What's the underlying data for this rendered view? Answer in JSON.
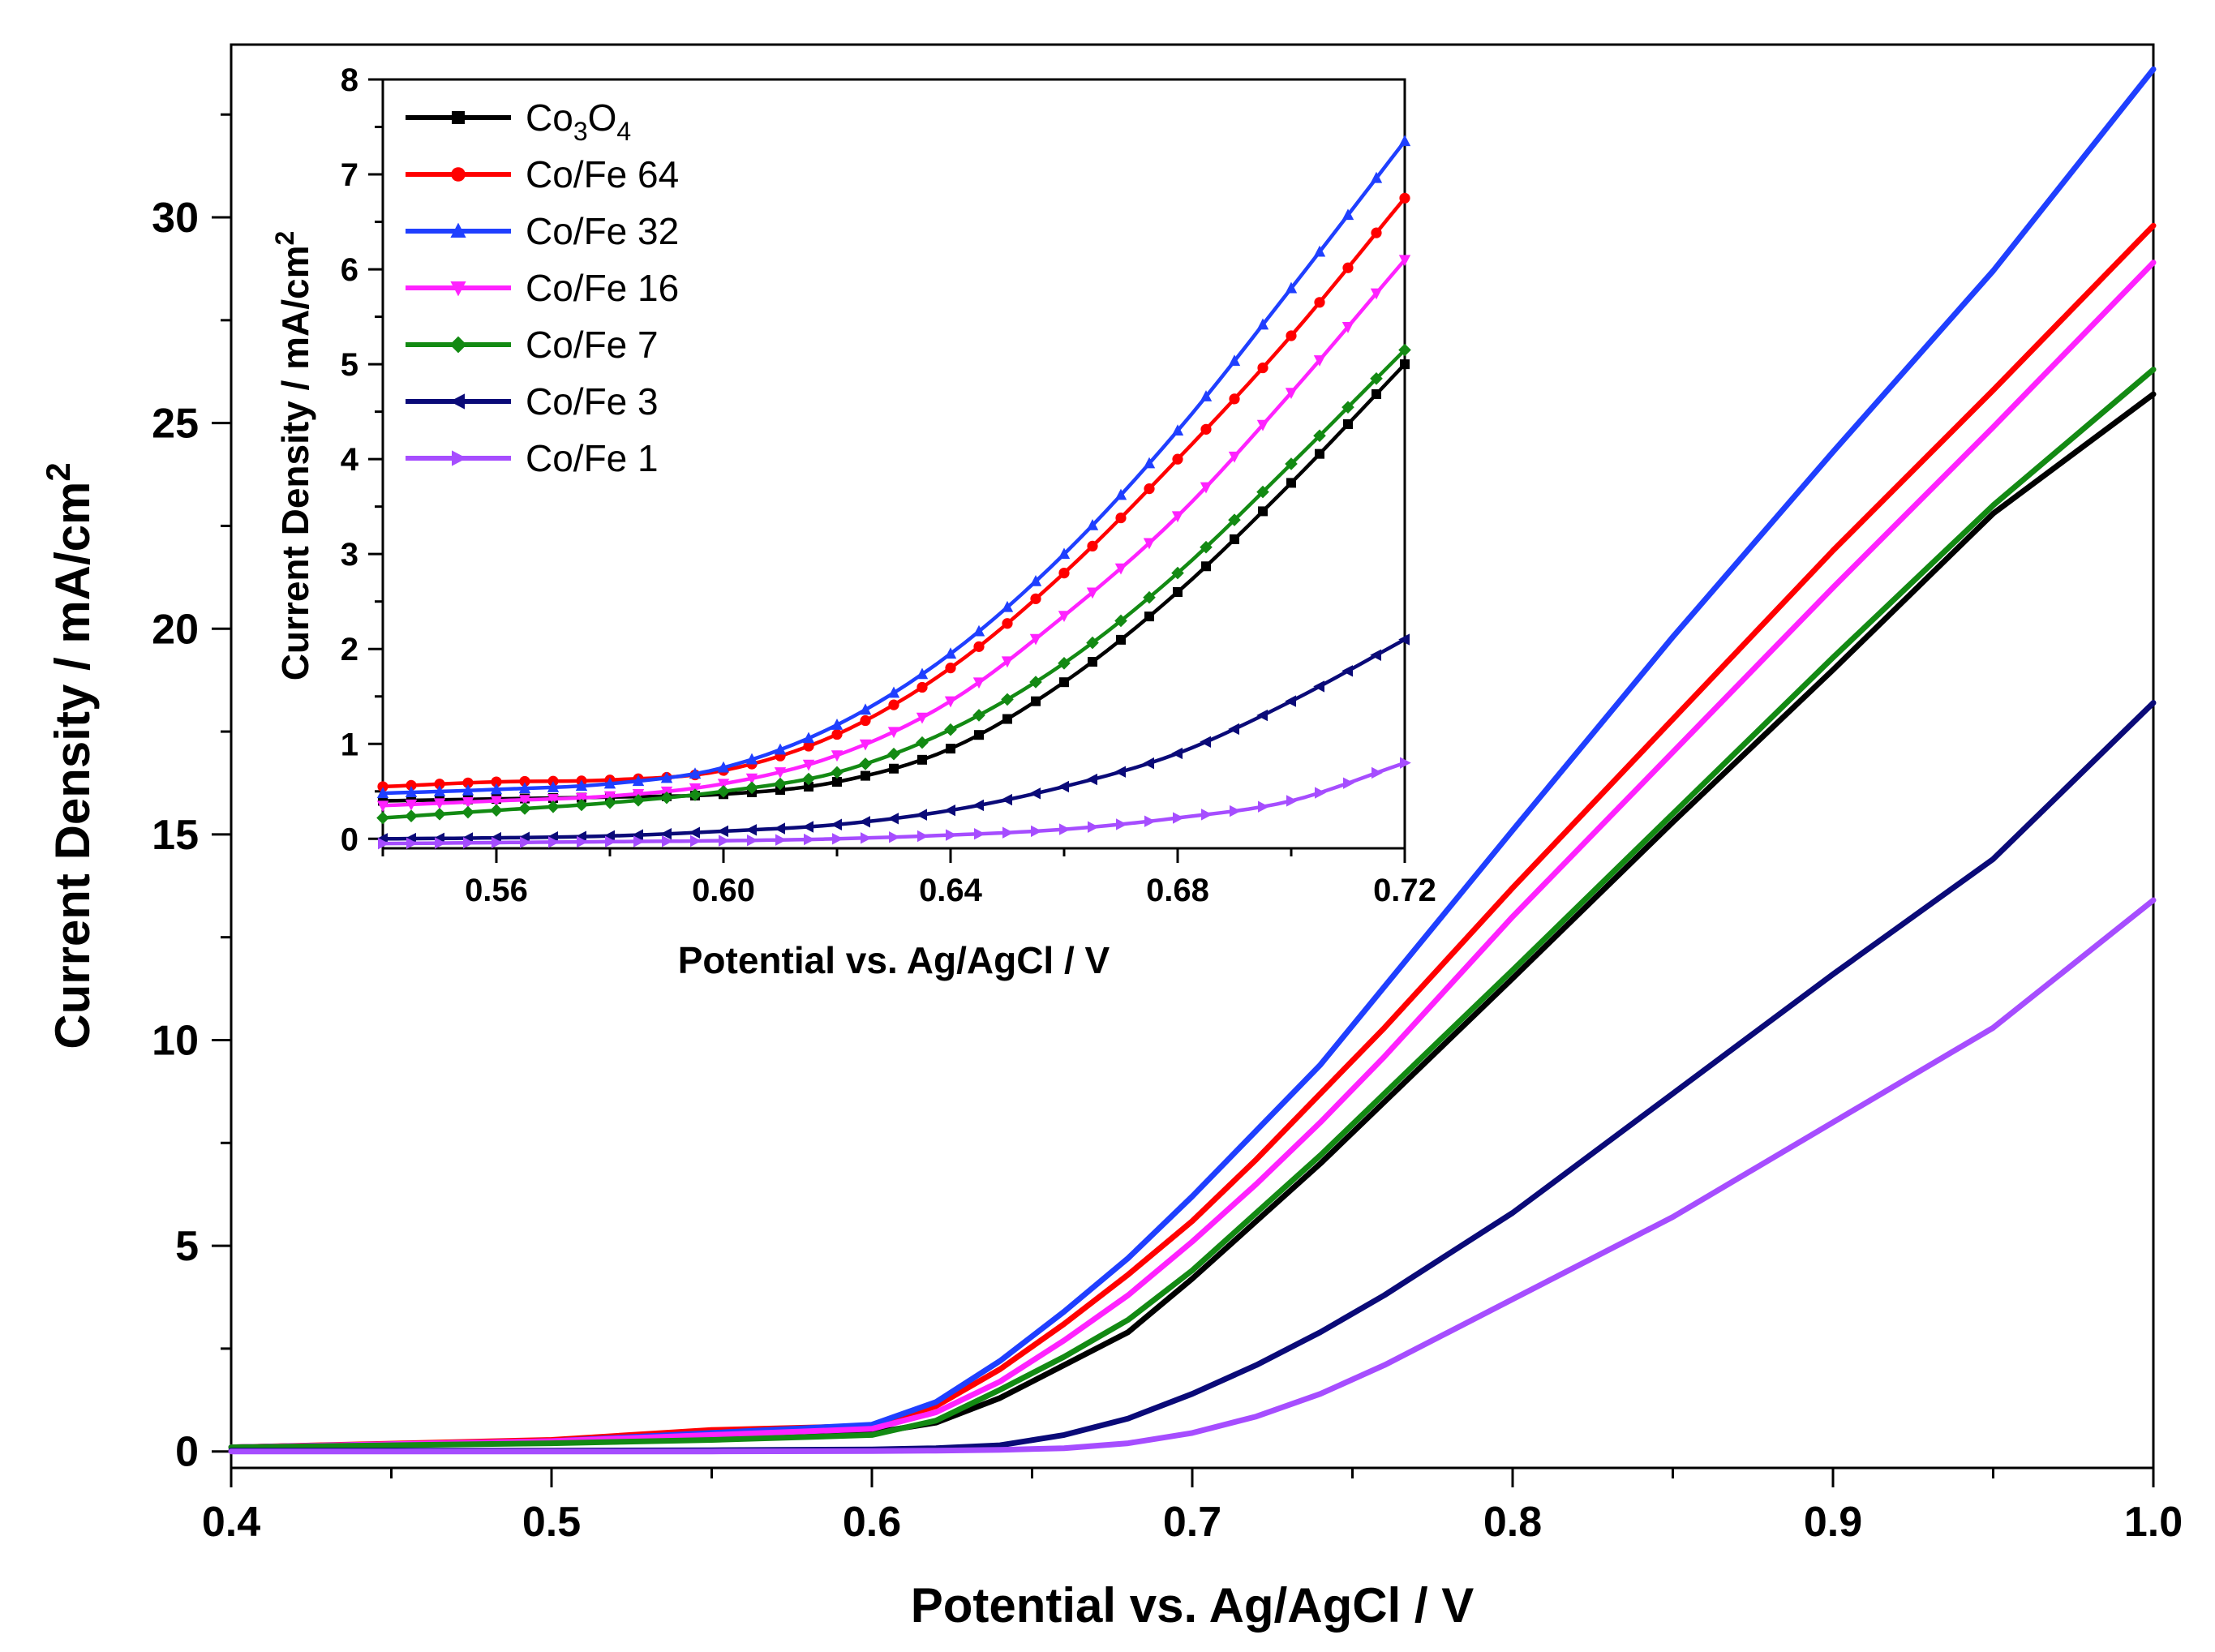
{
  "chart_data": [
    {
      "type": "line",
      "title": "",
      "xlabel": "Potential vs. Ag/AgCl / V",
      "ylabel": "Current Density / mA/cm",
      "ylabel_sup": "2",
      "xlim": [
        0.4,
        1.0
      ],
      "ylim": [
        -0.4,
        34.2
      ],
      "xticks": [
        "0.4",
        "0.5",
        "0.6",
        "0.7",
        "0.8",
        "0.9",
        "1.0"
      ],
      "yticks": [
        "0",
        "5",
        "10",
        "15",
        "20",
        "25",
        "30"
      ],
      "grid": false,
      "legend": "none",
      "x": [
        0.4,
        0.5,
        0.55,
        0.6,
        0.62,
        0.64,
        0.66,
        0.68,
        0.7,
        0.72,
        0.74,
        0.76,
        0.78,
        0.8,
        0.85,
        0.9,
        0.95,
        1.0
      ],
      "series": [
        {
          "name": "Co3O4",
          "color": "#000000",
          "values": [
            0.1,
            0.25,
            0.35,
            0.45,
            0.7,
            1.3,
            2.1,
            2.9,
            4.2,
            5.6,
            7.0,
            8.5,
            10.0,
            11.5,
            15.3,
            19.0,
            22.8,
            25.7
          ]
        },
        {
          "name": "Co/Fe 64",
          "color": "#ff0000",
          "values": [
            0.1,
            0.28,
            0.52,
            0.62,
            1.1,
            2.0,
            3.1,
            4.3,
            5.6,
            7.1,
            8.7,
            10.3,
            12.0,
            13.7,
            17.8,
            21.9,
            25.8,
            29.8
          ]
        },
        {
          "name": "Co/Fe 32",
          "color": "#1f3fff",
          "values": [
            0.1,
            0.25,
            0.45,
            0.65,
            1.2,
            2.2,
            3.4,
            4.7,
            6.2,
            7.8,
            9.4,
            11.3,
            13.2,
            15.1,
            19.8,
            24.3,
            28.7,
            33.6
          ]
        },
        {
          "name": "Co/Fe 16",
          "color": "#ff22ff",
          "values": [
            0.1,
            0.25,
            0.4,
            0.55,
            0.95,
            1.7,
            2.7,
            3.8,
            5.1,
            6.5,
            8.0,
            9.6,
            11.3,
            13.0,
            17.0,
            21.0,
            24.9,
            28.9
          ]
        },
        {
          "name": "Co/Fe 7",
          "color": "#138a13",
          "values": [
            0.1,
            0.2,
            0.28,
            0.4,
            0.75,
            1.5,
            2.3,
            3.2,
            4.4,
            5.8,
            7.2,
            8.7,
            10.2,
            11.7,
            15.5,
            19.3,
            23.0,
            26.3
          ]
        },
        {
          "name": "Co/Fe 3",
          "color": "#0a0a78",
          "values": [
            0.02,
            0.02,
            0.03,
            0.05,
            0.08,
            0.15,
            0.4,
            0.8,
            1.4,
            2.1,
            2.9,
            3.8,
            4.8,
            5.8,
            8.7,
            11.6,
            14.4,
            18.2
          ]
        },
        {
          "name": "Co/Fe 1",
          "color": "#a64dff",
          "values": [
            0.0,
            0.0,
            0.0,
            0.01,
            0.02,
            0.04,
            0.08,
            0.2,
            0.45,
            0.85,
            1.4,
            2.1,
            2.9,
            3.7,
            5.7,
            8.0,
            10.3,
            13.4
          ]
        }
      ]
    },
    {
      "type": "line",
      "title": "",
      "xlabel": "Potential vs. Ag/AgCl / V",
      "ylabel": "Current Density / mA/cm",
      "ylabel_sup": "2",
      "xlim": [
        0.54,
        0.72
      ],
      "ylim": [
        -0.1,
        8.0
      ],
      "xticks": [
        "0.56",
        "0.60",
        "0.64",
        "0.68",
        "0.72"
      ],
      "yticks": [
        "0",
        "1",
        "2",
        "3",
        "4",
        "5",
        "6",
        "7",
        "8"
      ],
      "grid": false,
      "legend": "top-left",
      "x": [
        0.54,
        0.56,
        0.58,
        0.6,
        0.62,
        0.64,
        0.66,
        0.68,
        0.7,
        0.72
      ],
      "series": [
        {
          "name": "Co3O4",
          "label_main": "Co",
          "label_sub1": "3",
          "label_mid": "O",
          "label_sub2": "4",
          "color": "#000000",
          "marker": "square",
          "values": [
            0.4,
            0.42,
            0.44,
            0.47,
            0.6,
            0.95,
            1.65,
            2.6,
            3.75,
            5.0
          ]
        },
        {
          "name": "Co/Fe 64",
          "label_main": "Co/Fe 64",
          "color": "#ff0000",
          "marker": "circle",
          "values": [
            0.55,
            0.6,
            0.62,
            0.72,
            1.1,
            1.8,
            2.8,
            4.0,
            5.3,
            6.75
          ]
        },
        {
          "name": "Co/Fe 32",
          "label_main": "Co/Fe 32",
          "color": "#1f3fff",
          "marker": "triangle-up",
          "values": [
            0.48,
            0.52,
            0.58,
            0.75,
            1.2,
            1.95,
            3.0,
            4.3,
            5.8,
            7.35
          ]
        },
        {
          "name": "Co/Fe 16",
          "label_main": "Co/Fe 16",
          "color": "#ff22ff",
          "marker": "triangle-down",
          "values": [
            0.35,
            0.4,
            0.45,
            0.58,
            0.88,
            1.45,
            2.35,
            3.4,
            4.7,
            6.1
          ]
        },
        {
          "name": "Co/Fe 7",
          "label_main": "Co/Fe 7",
          "color": "#138a13",
          "marker": "diamond",
          "values": [
            0.22,
            0.3,
            0.38,
            0.5,
            0.7,
            1.15,
            1.85,
            2.8,
            3.95,
            5.15
          ]
        },
        {
          "name": "Co/Fe 3",
          "label_main": "Co/Fe 3",
          "color": "#0a0a78",
          "marker": "triangle-left",
          "values": [
            0.0,
            0.01,
            0.03,
            0.08,
            0.15,
            0.3,
            0.55,
            0.9,
            1.45,
            2.1
          ]
        },
        {
          "name": "Co/Fe 1",
          "label_main": "Co/Fe 1",
          "color": "#a64dff",
          "marker": "triangle-right",
          "values": [
            -0.05,
            -0.04,
            -0.03,
            -0.02,
            0.0,
            0.04,
            0.1,
            0.22,
            0.4,
            0.8
          ]
        }
      ]
    }
  ]
}
